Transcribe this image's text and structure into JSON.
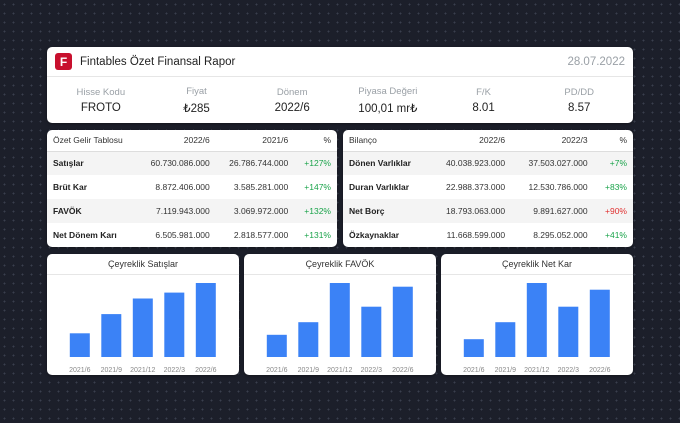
{
  "header": {
    "title": "Fintables Özet Finansal Rapor",
    "date": "28.07.2022",
    "logo_letter": "F",
    "logo_color": "#c8102e",
    "stats": [
      {
        "label": "Hisse Kodu",
        "value": "FROTO"
      },
      {
        "label": "Fiyat",
        "value": "₺285"
      },
      {
        "label": "Dönem",
        "value": "2022/6"
      },
      {
        "label": "Piyasa Değeri",
        "value": "100,01 mr₺"
      },
      {
        "label": "F/K",
        "value": "8.01"
      },
      {
        "label": "PD/DD",
        "value": "8.57"
      }
    ]
  },
  "income": {
    "headers": [
      "Özet Gelir Tablosu",
      "2022/6",
      "2021/6",
      "%"
    ],
    "rows": [
      {
        "name": "Satışlar",
        "a": "60.730.086.000",
        "b": "26.786.744.000",
        "pct": "+127%"
      },
      {
        "name": "Brüt Kar",
        "a": "8.872.406.000",
        "b": "3.585.281.000",
        "pct": "+147%"
      },
      {
        "name": "FAVÖK",
        "a": "7.119.943.000",
        "b": "3.069.972.000",
        "pct": "+132%"
      },
      {
        "name": "Net Dönem Karı",
        "a": "6.505.981.000",
        "b": "2.818.577.000",
        "pct": "+131%"
      }
    ]
  },
  "balance": {
    "headers": [
      "Bilanço",
      "2022/6",
      "2022/3",
      "%"
    ],
    "rows": [
      {
        "name": "Dönen Varlıklar",
        "a": "40.038.923.000",
        "b": "37.503.027.000",
        "pct": "+7%"
      },
      {
        "name": "Duran Varlıklar",
        "a": "22.988.373.000",
        "b": "12.530.786.000",
        "pct": "+83%"
      },
      {
        "name": "Net Borç",
        "a": "18.793.063.000",
        "b": "9.891.627.000",
        "pct": "+90%"
      },
      {
        "name": "Özkaynaklar",
        "a": "11.668.599.000",
        "b": "8.295.052.000",
        "pct": "+41%"
      }
    ]
  },
  "colors": {
    "positive": "#1aa34a",
    "negative": "#e03131",
    "bar": "#3b82f6"
  },
  "chart_data": [
    {
      "type": "bar",
      "title": "Çeyreklik Satışlar",
      "categories": [
        "2021/6",
        "2021/9",
        "2021/12",
        "2022/3",
        "2022/6"
      ],
      "values": [
        32,
        58,
        79,
        87,
        100
      ],
      "ylim": [
        0,
        100
      ]
    },
    {
      "type": "bar",
      "title": "Çeyreklik FAVÖK",
      "categories": [
        "2021/6",
        "2021/9",
        "2021/12",
        "2022/3",
        "2022/6"
      ],
      "values": [
        30,
        47,
        100,
        68,
        95
      ],
      "ylim": [
        0,
        100
      ]
    },
    {
      "type": "bar",
      "title": "Çeyreklik Net Kar",
      "categories": [
        "2021/6",
        "2021/9",
        "2021/12",
        "2022/3",
        "2022/6"
      ],
      "values": [
        24,
        47,
        100,
        68,
        91
      ],
      "ylim": [
        0,
        100
      ]
    }
  ]
}
